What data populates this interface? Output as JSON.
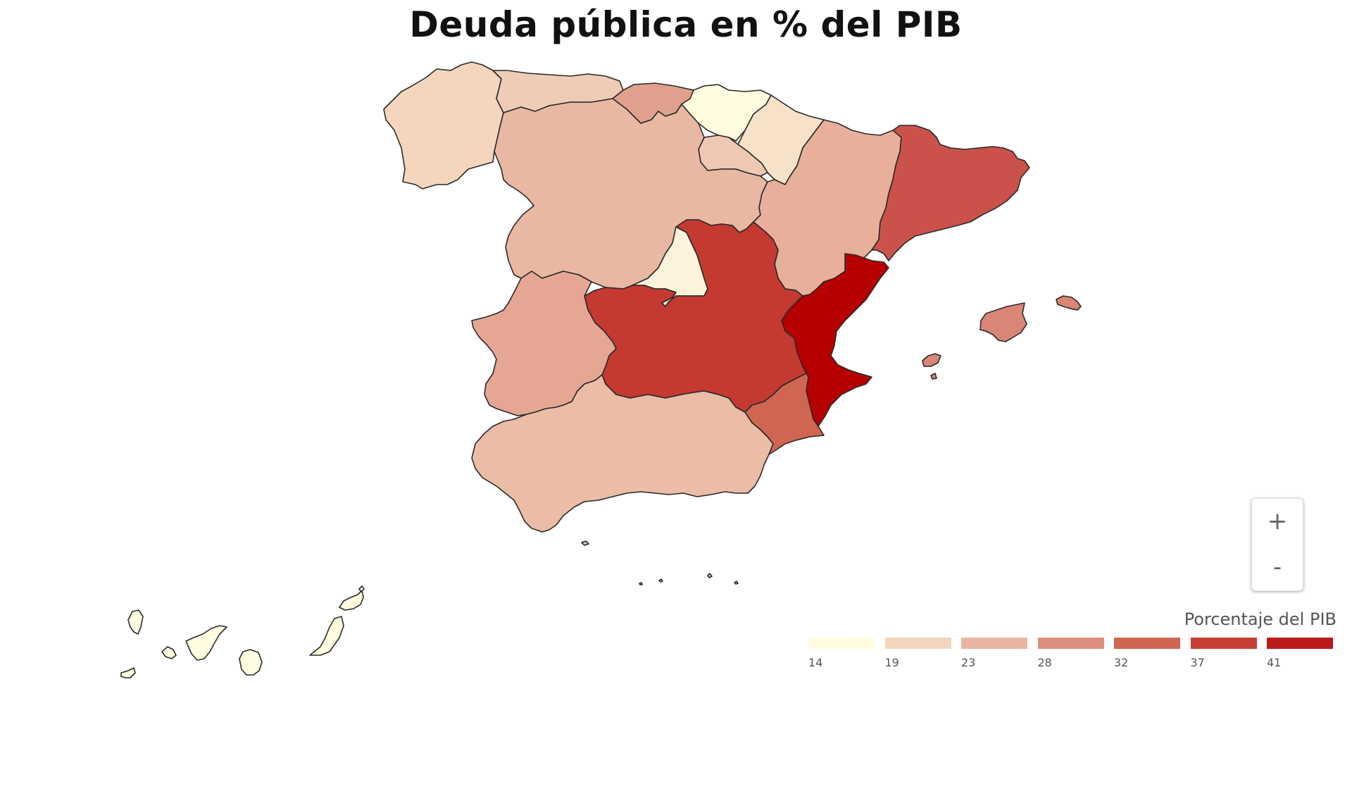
{
  "title": "Deuda pública en % del PIB",
  "legend": {
    "title": "Porcentaje del PIB",
    "bins": [
      {
        "label": "14",
        "color": "#fffce0"
      },
      {
        "label": "19",
        "color": "#f3d6bd"
      },
      {
        "label": "23",
        "color": "#e8b6a1"
      },
      {
        "label": "28",
        "color": "#de8e7c"
      },
      {
        "label": "32",
        "color": "#d06552"
      },
      {
        "label": "37",
        "color": "#c73e35"
      },
      {
        "label": "41",
        "color": "#bb1a1a"
      }
    ]
  },
  "zoom": {
    "in_label": "+",
    "out_label": "-"
  },
  "regions": [
    {
      "name": "Galicia",
      "color": "#f3d6bd"
    },
    {
      "name": "Asturias",
      "color": "#efccb5"
    },
    {
      "name": "Cantabria",
      "color": "#e0a08e"
    },
    {
      "name": "País Vasco",
      "color": "#fffce0"
    },
    {
      "name": "Navarra",
      "color": "#f5e2c8"
    },
    {
      "name": "La Rioja",
      "color": "#efc8b3"
    },
    {
      "name": "Castilla y León",
      "color": "#e8b8a3"
    },
    {
      "name": "Aragón",
      "color": "#e8b09b"
    },
    {
      "name": "Cataluña",
      "color": "#cb524a"
    },
    {
      "name": "Madrid",
      "color": "#fcf3dc"
    },
    {
      "name": "Castilla-La Mancha",
      "color": "#c43a31"
    },
    {
      "name": "Comunidad Valenciana",
      "color": "#b60000"
    },
    {
      "name": "Extremadura",
      "color": "#e5a794"
    },
    {
      "name": "Andalucía",
      "color": "#ebbca6"
    },
    {
      "name": "Región de Murcia",
      "color": "#d06552"
    },
    {
      "name": "Islas Baleares",
      "color": "#d98677"
    },
    {
      "name": "Canarias",
      "color": "#fffce0"
    },
    {
      "name": "Ceuta",
      "color": "#cfcfcf"
    },
    {
      "name": "Melilla",
      "color": "#cfcfcf"
    }
  ]
}
